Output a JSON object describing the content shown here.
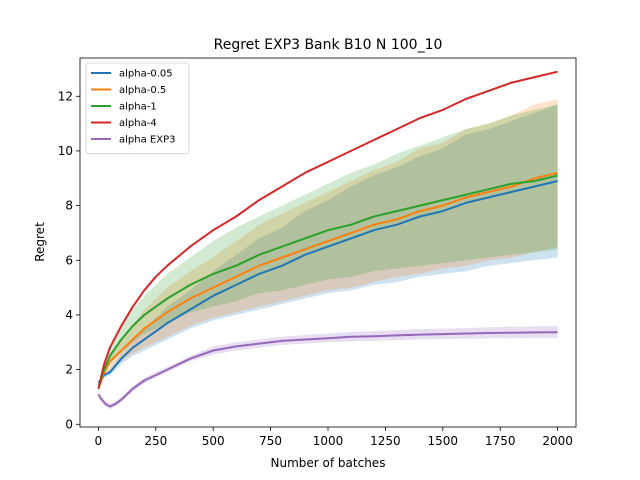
{
  "chart_data": {
    "type": "line",
    "title": "Regret EXP3 Bank B10 N 100_10",
    "xlabel": "Number of batches",
    "ylabel": "Regret",
    "xlim": [
      -80,
      2080
    ],
    "ylim": [
      -0.1,
      13.4
    ],
    "xticks": [
      0,
      250,
      500,
      750,
      1000,
      1250,
      1500,
      1750,
      2000
    ],
    "yticks": [
      0,
      2,
      4,
      6,
      8,
      10,
      12
    ],
    "legend_position": "upper-left",
    "grid": false,
    "series": [
      {
        "name": "alpha-0.05",
        "color": "#1f77b4",
        "x": [
          0,
          25,
          50,
          100,
          150,
          200,
          250,
          300,
          400,
          500,
          600,
          700,
          800,
          900,
          1000,
          1100,
          1200,
          1300,
          1400,
          1500,
          1600,
          1700,
          1800,
          1900,
          2000
        ],
        "y": [
          1.5,
          1.8,
          1.9,
          2.4,
          2.8,
          3.1,
          3.4,
          3.7,
          4.2,
          4.7,
          5.1,
          5.5,
          5.8,
          6.2,
          6.5,
          6.8,
          7.1,
          7.3,
          7.6,
          7.8,
          8.1,
          8.3,
          8.5,
          8.7,
          8.9
        ],
        "lower": [
          1.4,
          1.7,
          1.8,
          2.2,
          2.5,
          2.7,
          2.9,
          3.1,
          3.5,
          3.8,
          4.0,
          4.2,
          4.4,
          4.6,
          4.8,
          4.9,
          5.1,
          5.2,
          5.4,
          5.5,
          5.6,
          5.8,
          5.9,
          6.0,
          6.1
        ],
        "upper": [
          1.6,
          1.9,
          2.0,
          2.6,
          3.1,
          3.5,
          3.9,
          4.3,
          4.9,
          5.6,
          6.2,
          6.8,
          7.2,
          7.8,
          8.2,
          8.7,
          9.1,
          9.4,
          9.8,
          10.1,
          10.6,
          10.8,
          11.1,
          11.4,
          11.7
        ]
      },
      {
        "name": "alpha-0.5",
        "color": "#ff7f0e",
        "x": [
          0,
          25,
          50,
          100,
          150,
          200,
          250,
          300,
          400,
          500,
          600,
          700,
          800,
          900,
          1000,
          1100,
          1200,
          1300,
          1400,
          1500,
          1600,
          1700,
          1800,
          1900,
          2000
        ],
        "y": [
          1.3,
          1.9,
          2.3,
          2.7,
          3.1,
          3.5,
          3.8,
          4.1,
          4.6,
          5.0,
          5.4,
          5.8,
          6.1,
          6.4,
          6.7,
          7.0,
          7.3,
          7.5,
          7.8,
          8.0,
          8.3,
          8.5,
          8.7,
          9.0,
          9.2
        ],
        "lower": [
          1.2,
          1.7,
          2.0,
          2.3,
          2.6,
          2.8,
          3.0,
          3.2,
          3.6,
          3.9,
          4.1,
          4.3,
          4.5,
          4.7,
          4.9,
          5.0,
          5.2,
          5.4,
          5.5,
          5.7,
          5.8,
          6.0,
          6.1,
          6.3,
          6.5
        ],
        "upper": [
          1.4,
          2.1,
          2.6,
          3.1,
          3.6,
          4.2,
          4.6,
          5.0,
          5.6,
          6.1,
          6.7,
          7.3,
          7.7,
          8.1,
          8.5,
          8.9,
          9.3,
          9.6,
          10.1,
          10.3,
          10.8,
          11.0,
          11.3,
          11.7,
          11.9
        ]
      },
      {
        "name": "alpha-1",
        "color": "#2ca02c",
        "x": [
          0,
          25,
          50,
          100,
          150,
          200,
          250,
          300,
          400,
          500,
          600,
          700,
          800,
          900,
          1000,
          1100,
          1200,
          1300,
          1400,
          1500,
          1600,
          1700,
          1800,
          1900,
          2000
        ],
        "y": [
          1.3,
          2.0,
          2.5,
          3.1,
          3.6,
          4.0,
          4.3,
          4.6,
          5.1,
          5.5,
          5.8,
          6.2,
          6.5,
          6.8,
          7.1,
          7.3,
          7.6,
          7.8,
          8.0,
          8.2,
          8.4,
          8.6,
          8.8,
          8.9,
          9.1
        ],
        "lower": [
          1.2,
          1.8,
          2.2,
          2.6,
          3.0,
          3.3,
          3.5,
          3.7,
          4.1,
          4.3,
          4.5,
          4.8,
          4.9,
          5.1,
          5.3,
          5.4,
          5.6,
          5.7,
          5.8,
          5.9,
          6.0,
          6.1,
          6.2,
          6.3,
          6.4
        ],
        "upper": [
          1.4,
          2.2,
          2.8,
          3.6,
          4.2,
          4.7,
          5.1,
          5.5,
          6.1,
          6.7,
          7.2,
          7.6,
          8.0,
          8.4,
          8.8,
          9.2,
          9.5,
          9.9,
          10.2,
          10.5,
          10.8,
          11.0,
          11.3,
          11.5,
          11.7
        ]
      },
      {
        "name": "alpha-4",
        "color": "#d62728",
        "x": [
          0,
          25,
          50,
          100,
          150,
          200,
          250,
          300,
          400,
          500,
          600,
          700,
          800,
          900,
          1000,
          1100,
          1200,
          1300,
          1400,
          1500,
          1600,
          1700,
          1800,
          1900,
          2000
        ],
        "y": [
          1.3,
          2.2,
          2.8,
          3.6,
          4.3,
          4.9,
          5.4,
          5.8,
          6.5,
          7.1,
          7.6,
          8.2,
          8.7,
          9.2,
          9.6,
          10.0,
          10.4,
          10.8,
          11.2,
          11.5,
          11.9,
          12.2,
          12.5,
          12.7,
          12.9
        ],
        "lower": [
          1.3,
          2.2,
          2.8,
          3.6,
          4.3,
          4.9,
          5.4,
          5.8,
          6.5,
          7.1,
          7.6,
          8.2,
          8.7,
          9.2,
          9.6,
          10.0,
          10.4,
          10.8,
          11.2,
          11.5,
          11.9,
          12.2,
          12.5,
          12.7,
          12.9
        ],
        "upper": [
          1.3,
          2.2,
          2.8,
          3.6,
          4.3,
          4.9,
          5.4,
          5.8,
          6.5,
          7.1,
          7.6,
          8.2,
          8.7,
          9.2,
          9.6,
          10.0,
          10.4,
          10.8,
          11.2,
          11.5,
          11.9,
          12.2,
          12.5,
          12.7,
          12.9
        ]
      },
      {
        "name": "alpha EXP3",
        "color": "#9467bd",
        "x": [
          0,
          10,
          20,
          30,
          40,
          50,
          75,
          100,
          150,
          200,
          250,
          300,
          400,
          500,
          600,
          700,
          800,
          900,
          1000,
          1100,
          1200,
          1300,
          1400,
          1500,
          1600,
          1700,
          1800,
          1900,
          2000
        ],
        "y": [
          1.1,
          0.95,
          0.85,
          0.75,
          0.7,
          0.65,
          0.75,
          0.9,
          1.3,
          1.6,
          1.8,
          2.0,
          2.4,
          2.7,
          2.85,
          2.95,
          3.05,
          3.1,
          3.15,
          3.2,
          3.22,
          3.25,
          3.28,
          3.3,
          3.32,
          3.34,
          3.35,
          3.36,
          3.37
        ],
        "lower": [
          1.0,
          0.85,
          0.75,
          0.65,
          0.6,
          0.55,
          0.65,
          0.8,
          1.2,
          1.5,
          1.7,
          1.9,
          2.3,
          2.55,
          2.7,
          2.8,
          2.9,
          2.95,
          3.0,
          3.03,
          3.05,
          3.08,
          3.1,
          3.12,
          3.13,
          3.14,
          3.15,
          3.16,
          3.16
        ],
        "upper": [
          1.2,
          1.05,
          0.95,
          0.85,
          0.8,
          0.75,
          0.85,
          1.0,
          1.4,
          1.7,
          1.9,
          2.1,
          2.5,
          2.85,
          3.0,
          3.1,
          3.2,
          3.27,
          3.32,
          3.38,
          3.41,
          3.44,
          3.48,
          3.5,
          3.52,
          3.55,
          3.57,
          3.58,
          3.6
        ]
      }
    ]
  }
}
